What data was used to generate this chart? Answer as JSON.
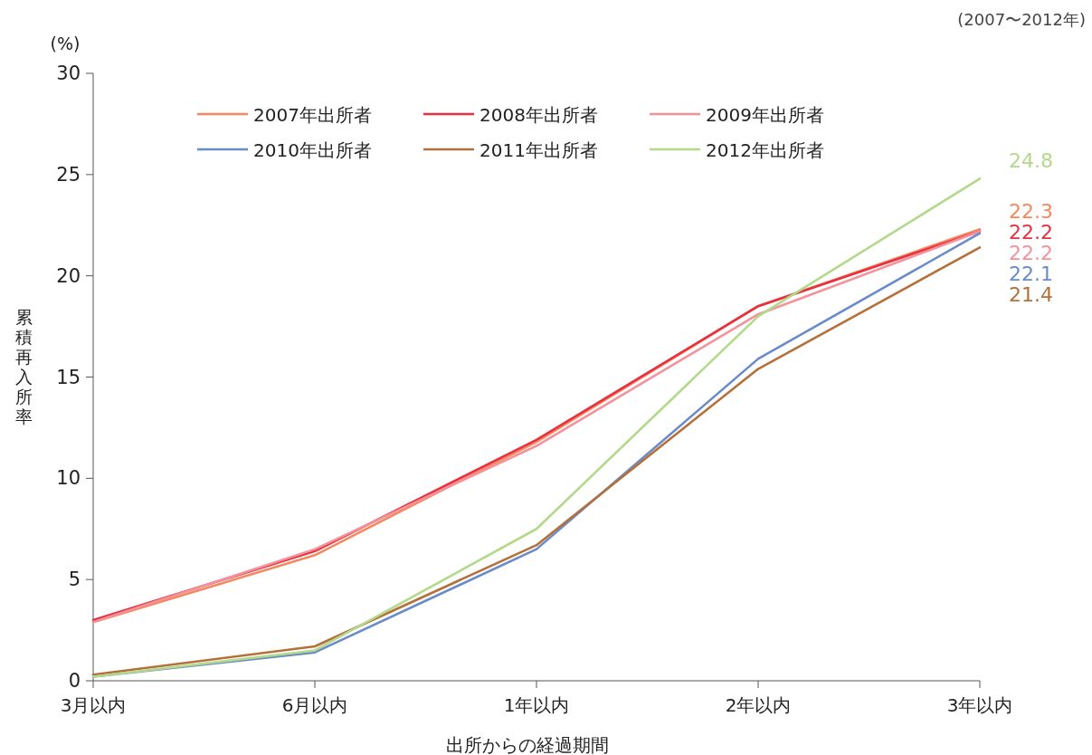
{
  "chart_data": {
    "type": "line",
    "ylabel": "累積再入所率",
    "xlabel": "出所からの経過期間",
    "annotations": [
      "(%)",
      "(2007〜2012年)"
    ],
    "categories": [
      "3月以内",
      "6月以内",
      "1年以内",
      "2年以内",
      "3年以内"
    ],
    "ylim": [
      0,
      30
    ],
    "yticks": [
      0,
      5,
      10,
      15,
      20,
      25,
      30
    ],
    "grid": false,
    "legend": "top",
    "marker": "none",
    "line_style": "solid",
    "series": [
      {
        "name": "2007年出所者",
        "color": "#f4895f",
        "values": [
          2.9,
          6.2,
          11.8,
          18.5,
          22.3
        ],
        "value_labels": [
          null,
          null,
          null,
          null,
          "22.3"
        ]
      },
      {
        "name": "2008年出所者",
        "color": "#e8303f",
        "values": [
          3.0,
          6.4,
          11.9,
          18.5,
          22.2
        ],
        "value_labels": [
          null,
          null,
          null,
          null,
          "22.2"
        ]
      },
      {
        "name": "2009年出所者",
        "color": "#f4929b",
        "values": [
          2.9,
          6.5,
          11.6,
          18.1,
          22.2
        ],
        "value_labels": [
          null,
          null,
          null,
          null,
          "22.2"
        ]
      },
      {
        "name": "2010年出所者",
        "color": "#6a8bc9",
        "values": [
          0.2,
          1.4,
          6.5,
          15.9,
          22.1
        ],
        "value_labels": [
          null,
          null,
          null,
          null,
          "22.1"
        ]
      },
      {
        "name": "2011年出所者",
        "color": "#b5703a",
        "values": [
          0.3,
          1.7,
          6.7,
          15.4,
          21.4
        ],
        "value_labels": [
          null,
          null,
          null,
          null,
          "21.4"
        ]
      },
      {
        "name": "2012年出所者",
        "color": "#b3d98a",
        "values": [
          0.2,
          1.5,
          7.5,
          18.0,
          24.8
        ],
        "value_labels": [
          null,
          null,
          null,
          null,
          "24.8"
        ]
      }
    ]
  }
}
